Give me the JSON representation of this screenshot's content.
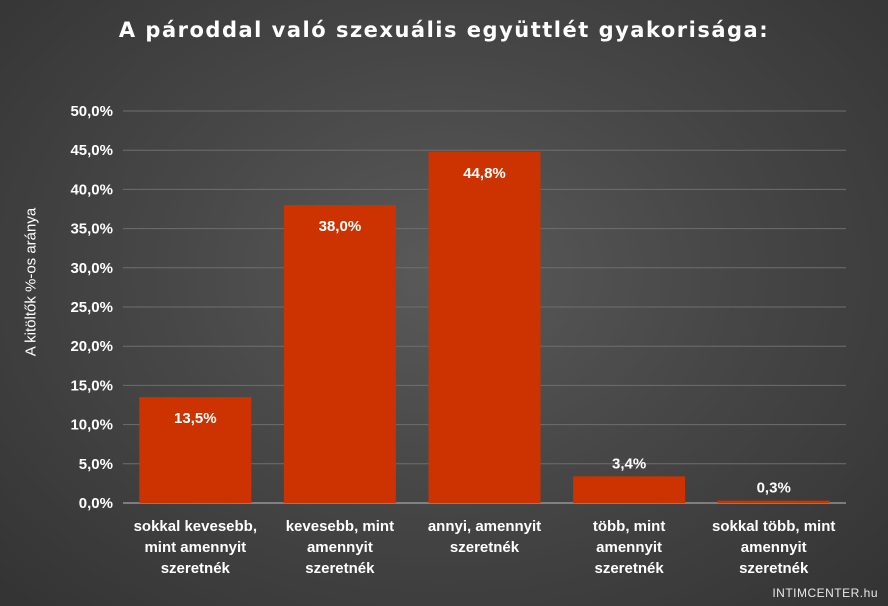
{
  "chart_data": {
    "type": "bar",
    "title": "A pároddal való szexuális együttlét gyakorisága:",
    "ylabel": "A kitöltők %-os aránya",
    "xlabel": "",
    "categories": [
      [
        "sokkal kevesebb,",
        "mint amennyit",
        "szeretnék"
      ],
      [
        "kevesebb, mint",
        "amennyit",
        "szeretnék"
      ],
      [
        "annyi, amennyit",
        "szeretnék"
      ],
      [
        "több, mint",
        "amennyit",
        "szeretnék"
      ],
      [
        "sokkal több, mint",
        "amennyit",
        "szeretnék"
      ]
    ],
    "values": [
      13.5,
      38.0,
      44.8,
      3.4,
      0.3
    ],
    "data_labels": [
      "13,5%",
      "38,0%",
      "44,8%",
      "3,4%",
      "0,3%"
    ],
    "ylim": [
      0,
      50
    ],
    "yticks": [
      0,
      5,
      10,
      15,
      20,
      25,
      30,
      35,
      40,
      45,
      50
    ],
    "ytick_labels": [
      "0,0%",
      "5,0%",
      "10,0%",
      "15,0%",
      "20,0%",
      "25,0%",
      "30,0%",
      "35,0%",
      "40,0%",
      "45,0%",
      "50,0%"
    ],
    "grid": true,
    "bar_color": "#cc3300",
    "grid_color": "#6e6e6e",
    "axis_color": "#bdbdbd"
  },
  "watermark": "INTIMCENTER.hu"
}
